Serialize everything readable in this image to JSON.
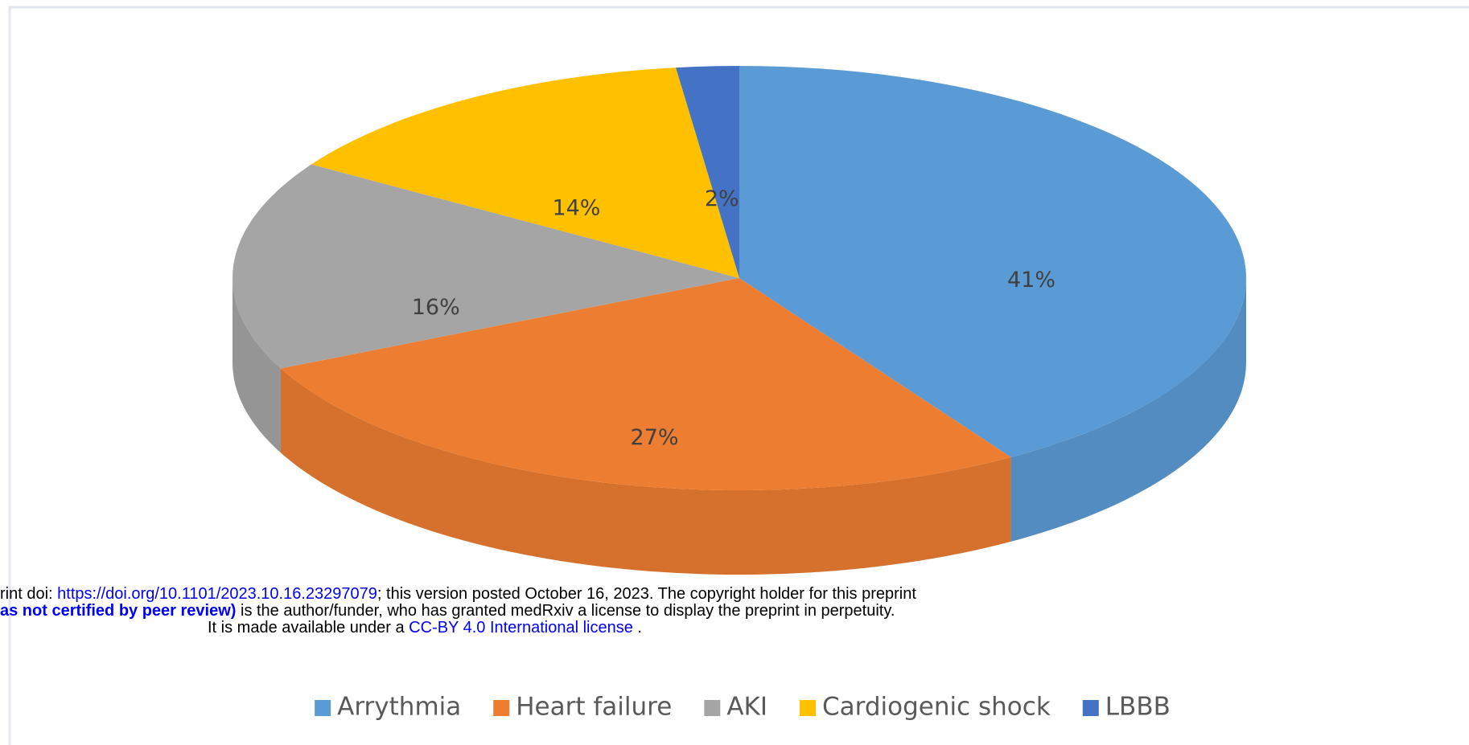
{
  "chart_data": {
    "type": "pie",
    "three_d": true,
    "categories": [
      "Arrythmia",
      "Heart failure",
      "AKI",
      "Cardiogenic shock",
      "LBBB"
    ],
    "values": [
      41,
      27,
      16,
      14,
      2
    ],
    "value_labels": [
      "41%",
      "27%",
      "16%",
      "14%",
      "2%"
    ],
    "colors": [
      "#5b9bd5",
      "#ed7d31",
      "#a5a5a5",
      "#ffc000",
      "#4472c4"
    ],
    "legend": "bottom"
  },
  "watermark": {
    "lines": [
      [
        {
          "text": "rint doi: ",
          "color": "#000000"
        },
        {
          "text": "https://doi.org/10.1101/2023.10.16.23297079",
          "color": "#0000ff"
        },
        {
          "text": "; this version posted October 16, 2023. The copyright holder for this preprint",
          "color": "#000000"
        }
      ],
      [
        {
          "text": "as not certified by peer review)",
          "color": "#0000ff",
          "bold": true
        },
        {
          "text": " is the author/funder, who has granted medRxiv a license to display the preprint in perpetuity.",
          "color": "#000000"
        }
      ],
      [
        {
          "text": "It is made available under a ",
          "color": "#000000"
        },
        {
          "text": "CC-BY 4.0 International license",
          "color": "#0000ff"
        },
        {
          "text": " .",
          "color": "#000000"
        }
      ]
    ]
  }
}
